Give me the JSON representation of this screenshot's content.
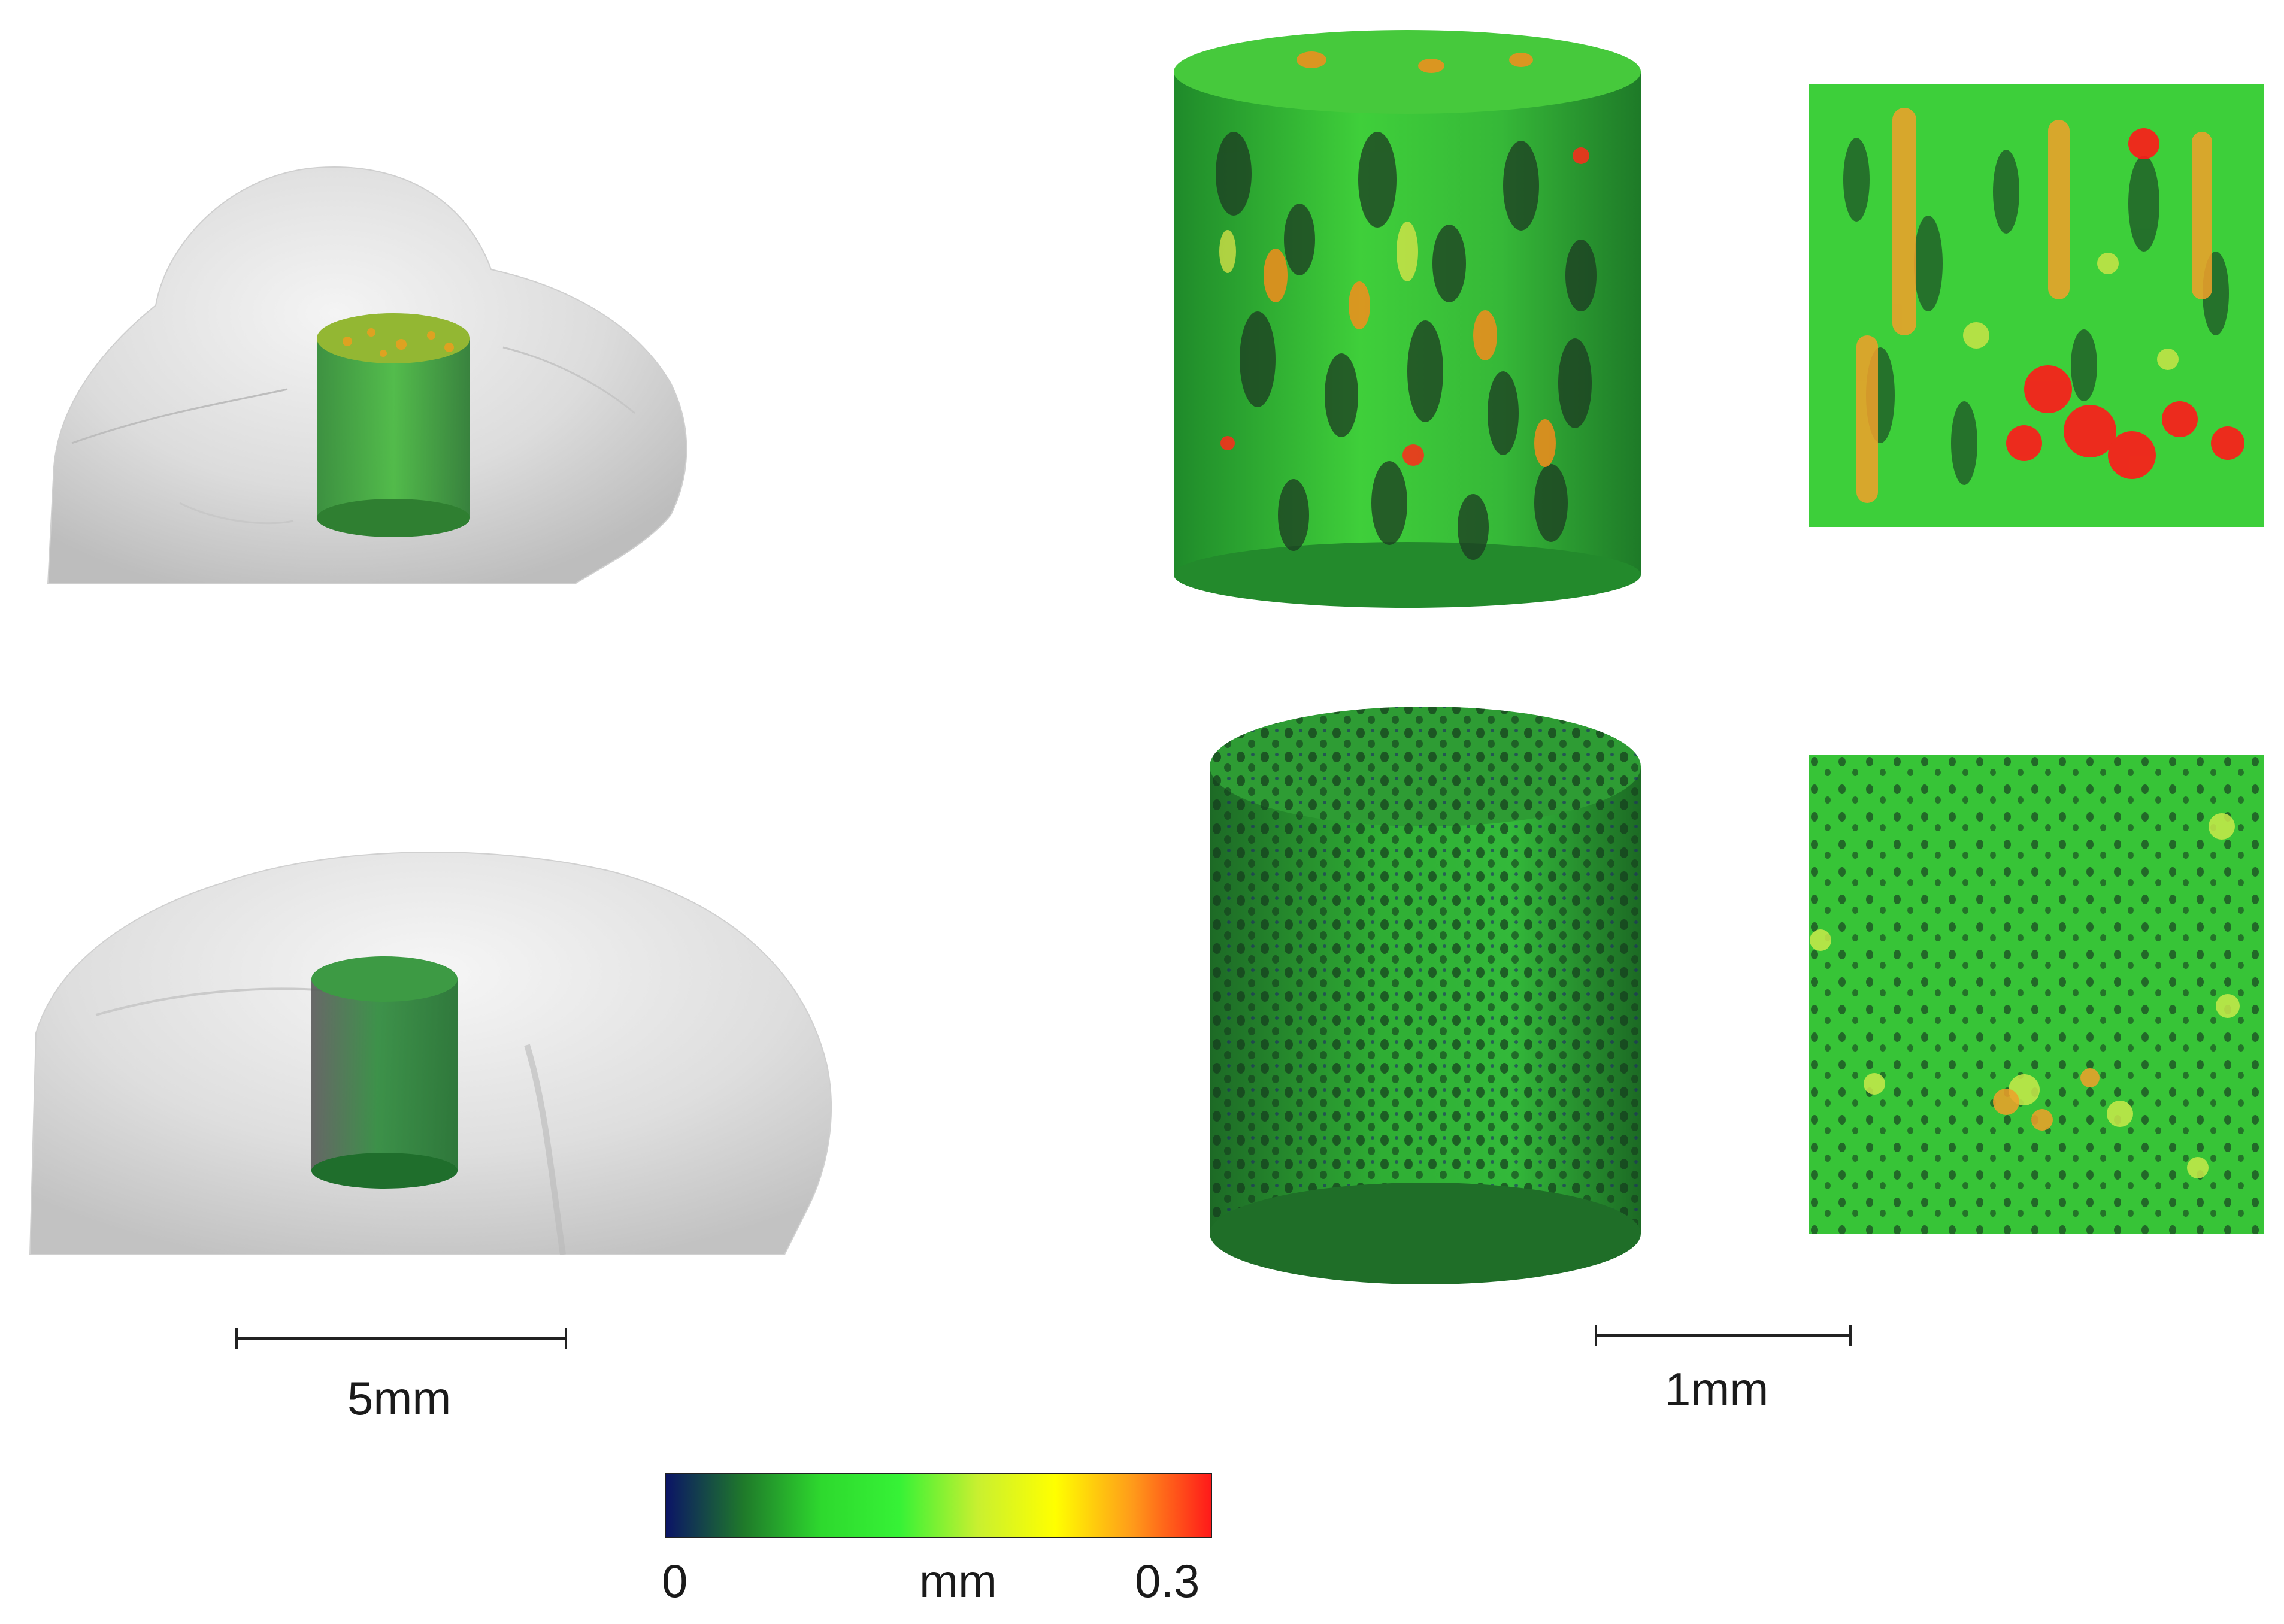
{
  "scale_bars": {
    "left_label": "5mm",
    "right_label": "1mm"
  },
  "colorbar": {
    "min_label": "0",
    "unit_label": "mm",
    "max_label": "0.3",
    "colors": [
      "#0b1466",
      "#1f7a2a",
      "#2ed92e",
      "#36f236",
      "#c8f030",
      "#ffff00",
      "#ff9a1a",
      "#ff1a1a"
    ]
  }
}
